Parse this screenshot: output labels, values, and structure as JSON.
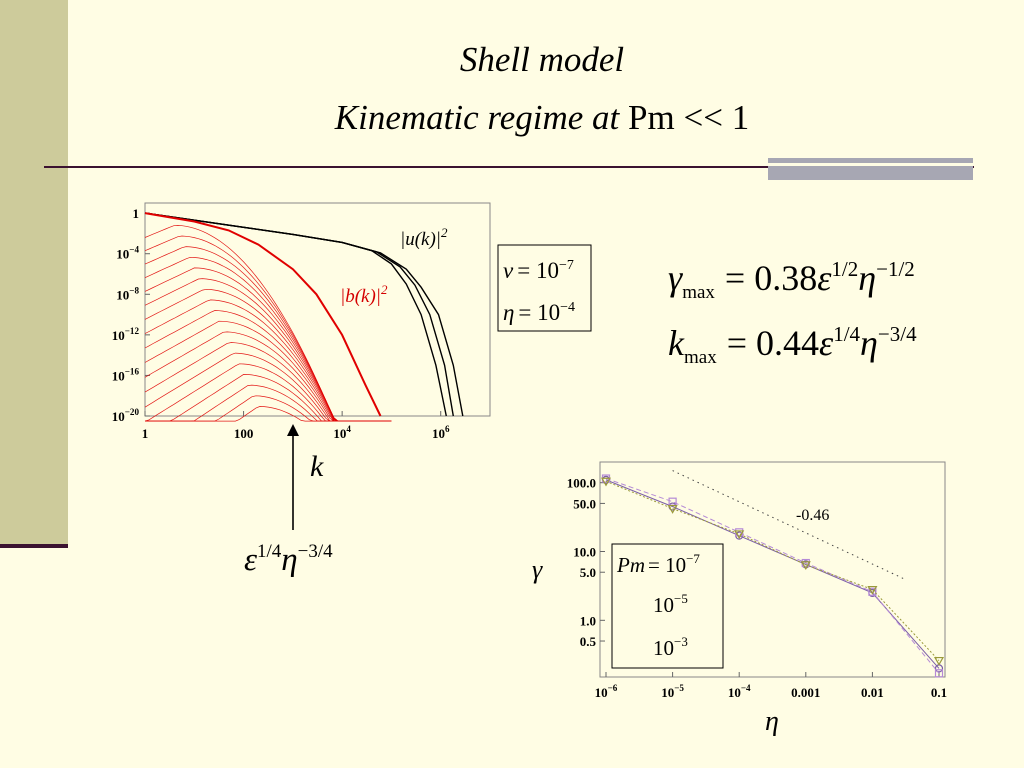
{
  "slide": {
    "title_italic": "Shell model",
    "subtitle_italic": "Kinematic regime at ",
    "subtitle_pm": "Pm",
    "subtitle_rest": " << 1"
  },
  "colors": {
    "background": "#fffde4",
    "sidebar": "#cdcb9b",
    "rule": "#3b1230",
    "rule_block": "#a7a7b3",
    "u_curves": "#000000",
    "b_curves": "#e00000",
    "series_1": "#7b5ea7",
    "series_2": "#b58ad6",
    "series_3": "#9a9a3a"
  },
  "formulas": {
    "gamma_lhs": "γ",
    "gamma_sub": "max",
    "gamma_coef": "= 0.38",
    "k_lhs": "k",
    "k_sub": "max",
    "k_coef": "= 0.44",
    "eps": "ε",
    "eta": "η",
    "exp_half": "1/2",
    "exp_neg_half": "−1/2",
    "exp_quarter": "1/4",
    "exp_neg_three_quarter": "−3/4"
  },
  "annotations": {
    "k_label": "k",
    "arrow_eps": "ε",
    "arrow_eta": "η",
    "arrow_exp1": "1/4",
    "arrow_exp2": "−3/4"
  },
  "params_box": {
    "nu_sym": "ν",
    "nu_eq": "= 10",
    "nu_exp": "−7",
    "eta_sym": "η",
    "eta_eq": "= 10",
    "eta_exp": "−4"
  },
  "chart_data": [
    {
      "type": "line",
      "title": "",
      "xlabel": "k",
      "ylabel": "",
      "xscale": "log",
      "yscale": "log",
      "xlim": [
        1,
        10000000
      ],
      "ylim": [
        1e-20,
        10
      ],
      "x_ticks": [
        {
          "value": 1,
          "base": "1",
          "exp": ""
        },
        {
          "value": 100,
          "base": "100",
          "exp": ""
        },
        {
          "value": 10000,
          "base": "10",
          "exp": "4"
        },
        {
          "value": 1000000,
          "base": "10",
          "exp": "6"
        }
      ],
      "y_ticks": [
        {
          "value": 1,
          "base": "1",
          "exp": ""
        },
        {
          "value": 0.0001,
          "base": "10",
          "exp": "−4"
        },
        {
          "value": 1e-08,
          "base": "10",
          "exp": "−8"
        },
        {
          "value": 1e-12,
          "base": "10",
          "exp": "−12"
        },
        {
          "value": 1e-16,
          "base": "10",
          "exp": "−16"
        },
        {
          "value": 1e-20,
          "base": "10",
          "exp": "−20"
        }
      ],
      "labels": {
        "u_prefix": "|u(k)|",
        "u_exp": "2",
        "b_prefix": "|b(k)|",
        "b_exp": "2"
      },
      "series": [
        {
          "name": "|u(k)|²",
          "x": [
            1,
            10,
            100,
            1000,
            10000,
            40000,
            100000,
            200000,
            400000,
            800000,
            1300000
          ],
          "y": [
            1,
            0.2,
            0.04,
            0.008,
            0.0013,
            0.0002,
            1e-05,
            1e-07,
            1e-10,
            1e-15,
            1e-20
          ]
        },
        {
          "name": "",
          "x": [
            1,
            10,
            100,
            1000,
            10000,
            50000,
            150000,
            300000,
            600000,
            1200000,
            1800000
          ],
          "y": [
            1,
            0.2,
            0.04,
            0.008,
            0.0013,
            0.00015,
            5e-06,
            8e-08,
            1e-10,
            1e-15,
            1e-20
          ]
        },
        {
          "name": "",
          "x": [
            1,
            10,
            100,
            1000,
            10000,
            60000,
            200000,
            400000,
            900000,
            1800000,
            2800000
          ],
          "y": [
            1,
            0.2,
            0.04,
            0.008,
            0.0013,
            0.00012,
            3e-06,
            5e-08,
            1e-10,
            1e-15,
            1e-20
          ]
        },
        {
          "name": "|b(k)|²",
          "x": [
            1,
            10,
            50,
            200,
            1000,
            3000,
            10000,
            30000,
            60000
          ],
          "y": [
            1,
            0.15,
            0.02,
            0.0008,
            3e-06,
            1e-08,
            1e-12,
            1e-17,
            1e-20
          ]
        }
      ]
    },
    {
      "type": "line",
      "title": "",
      "xlabel": "η",
      "ylabel": "γ",
      "xscale": "log",
      "yscale": "log",
      "xlim": [
        1e-06,
        0.1
      ],
      "ylim": [
        0.15,
        200
      ],
      "x_ticks": [
        {
          "value": 1e-06,
          "base": "10",
          "exp": "−6"
        },
        {
          "value": 1e-05,
          "base": "10",
          "exp": "−5"
        },
        {
          "value": 0.0001,
          "base": "10",
          "exp": "−4"
        },
        {
          "value": 0.001,
          "base": "0.001",
          "exp": ""
        },
        {
          "value": 0.01,
          "base": "0.01",
          "exp": ""
        },
        {
          "value": 0.1,
          "base": "0.1",
          "exp": ""
        }
      ],
      "y_ticks": [
        {
          "value": 100,
          "label": "100.0"
        },
        {
          "value": 50,
          "label": "50.0"
        },
        {
          "value": 10,
          "label": "10.0"
        },
        {
          "value": 5,
          "label": "5.0"
        },
        {
          "value": 1,
          "label": "1.0"
        },
        {
          "value": 0.5,
          "label": "0.5"
        }
      ],
      "slope_label": "-0.46",
      "slope_line": {
        "x": [
          1e-05,
          0.03
        ],
        "y": [
          150,
          4
        ]
      },
      "legend": {
        "pm_sym": "Pm",
        "pm_eq": "= 10",
        "exp1": "−7",
        "exp2": "−5",
        "exp3": "−3",
        "base": "10"
      },
      "series": [
        {
          "name": "10⁻⁷",
          "marker": "circle",
          "x": [
            1e-06,
            1e-05,
            0.0001,
            0.001,
            0.01,
            0.1
          ],
          "y": [
            110,
            45,
            17,
            6.5,
            2.5,
            0.2
          ]
        },
        {
          "name": "10⁻⁵",
          "marker": "square",
          "x": [
            1e-06,
            1e-05,
            0.0001,
            0.001,
            0.01,
            0.1
          ],
          "y": [
            115,
            53,
            19,
            6.8,
            2.6,
            0.17
          ]
        },
        {
          "name": "10⁻³",
          "marker": "triangle",
          "x": [
            1e-06,
            1e-05,
            0.0001,
            0.001,
            0.01,
            0.1
          ],
          "y": [
            105,
            42,
            18,
            6.4,
            2.8,
            0.26
          ]
        }
      ]
    }
  ]
}
